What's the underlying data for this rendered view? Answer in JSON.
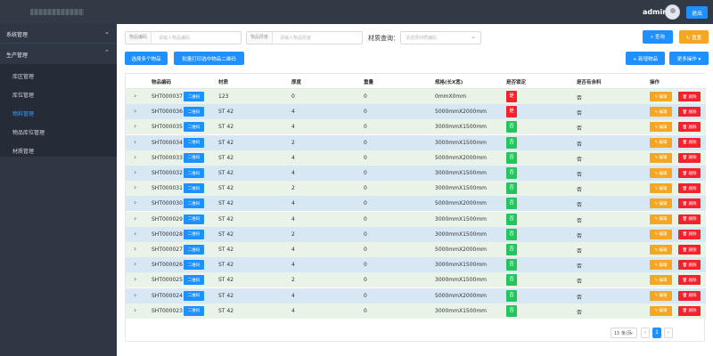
{
  "header": {
    "user": "admin",
    "logout_label": "退出"
  },
  "sidebar": {
    "groups": [
      {
        "label": "系统管理",
        "chevron": "⌄"
      },
      {
        "label": "生产管理",
        "chevron": "⌃"
      }
    ],
    "items": [
      "库区管理",
      "库位管理",
      "物料管理",
      "物品库位管理",
      "材质管理"
    ],
    "active_index": 2
  },
  "filters": {
    "code_label": "物品编码",
    "code_placeholder": "请输入物品编码",
    "thick_label": "物品厚度",
    "thick_placeholder": "请输入物品厚度",
    "material_label": "材质查询：",
    "material_placeholder": "请选择材质编码"
  },
  "toolbar": {
    "search_label": "查询",
    "reset_label": "重置",
    "select_multi_label": "选择多个物品",
    "print_qr_label": "批量打印选中物品二维码",
    "add_label": "新增物品",
    "more_label": "更多操作"
  },
  "table": {
    "columns": [
      "物品编码",
      "材质",
      "厚度",
      "重量",
      "规格(长X宽)",
      "是否锁定",
      "是否有余料",
      "操作"
    ],
    "qr_label": "二维码",
    "edit_label": "编辑",
    "delete_label": "删除",
    "rows": [
      {
        "code": "SHT000037",
        "material": "123",
        "thickness": "0",
        "weight": "0",
        "spec": "0mmX0mm",
        "locked": "是",
        "remainder": "否"
      },
      {
        "code": "SHT000036",
        "material": "ST 42",
        "thickness": "4",
        "weight": "0",
        "spec": "5000mmX2000mm",
        "locked": "是",
        "remainder": "否"
      },
      {
        "code": "SHT000035",
        "material": "ST 42",
        "thickness": "4",
        "weight": "0",
        "spec": "3000mmX1500mm",
        "locked": "否",
        "remainder": "否"
      },
      {
        "code": "SHT000034",
        "material": "ST 42",
        "thickness": "2",
        "weight": "0",
        "spec": "3000mmX1500mm",
        "locked": "否",
        "remainder": "否"
      },
      {
        "code": "SHT000033",
        "material": "ST 42",
        "thickness": "4",
        "weight": "0",
        "spec": "5000mmX2000mm",
        "locked": "否",
        "remainder": "否"
      },
      {
        "code": "SHT000032",
        "material": "ST 42",
        "thickness": "4",
        "weight": "0",
        "spec": "3000mmX1500mm",
        "locked": "否",
        "remainder": "否"
      },
      {
        "code": "SHT000031",
        "material": "ST 42",
        "thickness": "2",
        "weight": "0",
        "spec": "3000mmX1500mm",
        "locked": "否",
        "remainder": "否"
      },
      {
        "code": "SHT000030",
        "material": "ST 42",
        "thickness": "4",
        "weight": "0",
        "spec": "5000mmX2000mm",
        "locked": "否",
        "remainder": "否"
      },
      {
        "code": "SHT000029",
        "material": "ST 42",
        "thickness": "4",
        "weight": "0",
        "spec": "3000mmX1500mm",
        "locked": "否",
        "remainder": "否"
      },
      {
        "code": "SHT000028",
        "material": "ST 42",
        "thickness": "2",
        "weight": "0",
        "spec": "3000mmX1500mm",
        "locked": "否",
        "remainder": "否"
      },
      {
        "code": "SHT000027",
        "material": "ST 42",
        "thickness": "4",
        "weight": "0",
        "spec": "5000mmX2000mm",
        "locked": "否",
        "remainder": "否"
      },
      {
        "code": "SHT000026",
        "material": "ST 42",
        "thickness": "4",
        "weight": "0",
        "spec": "3000mmX1500mm",
        "locked": "否",
        "remainder": "否"
      },
      {
        "code": "SHT000025",
        "material": "ST 42",
        "thickness": "2",
        "weight": "0",
        "spec": "3000mmX1500mm",
        "locked": "否",
        "remainder": "否"
      },
      {
        "code": "SHT000024",
        "material": "ST 42",
        "thickness": "4",
        "weight": "0",
        "spec": "5000mmX2000mm",
        "locked": "否",
        "remainder": "否"
      },
      {
        "code": "SHT000023",
        "material": "ST 42",
        "thickness": "4",
        "weight": "0",
        "spec": "3000mmX1500mm",
        "locked": "否",
        "remainder": "否"
      }
    ]
  },
  "pagination": {
    "page_size": "15 条/页",
    "current_page": "1",
    "prev": "‹",
    "next": "›"
  },
  "colors": {
    "accent": "#1e90ff",
    "warning": "#f5a623",
    "danger": "#f5222d",
    "success": "#22c55e",
    "sidebar": "#2f3744"
  },
  "icons": {
    "search": "search-icon",
    "reset": "refresh-icon",
    "add": "plus-icon",
    "more": "caret-down-icon",
    "edit": "pencil-icon",
    "delete": "trash-icon",
    "expand": "chevron-right-icon"
  }
}
